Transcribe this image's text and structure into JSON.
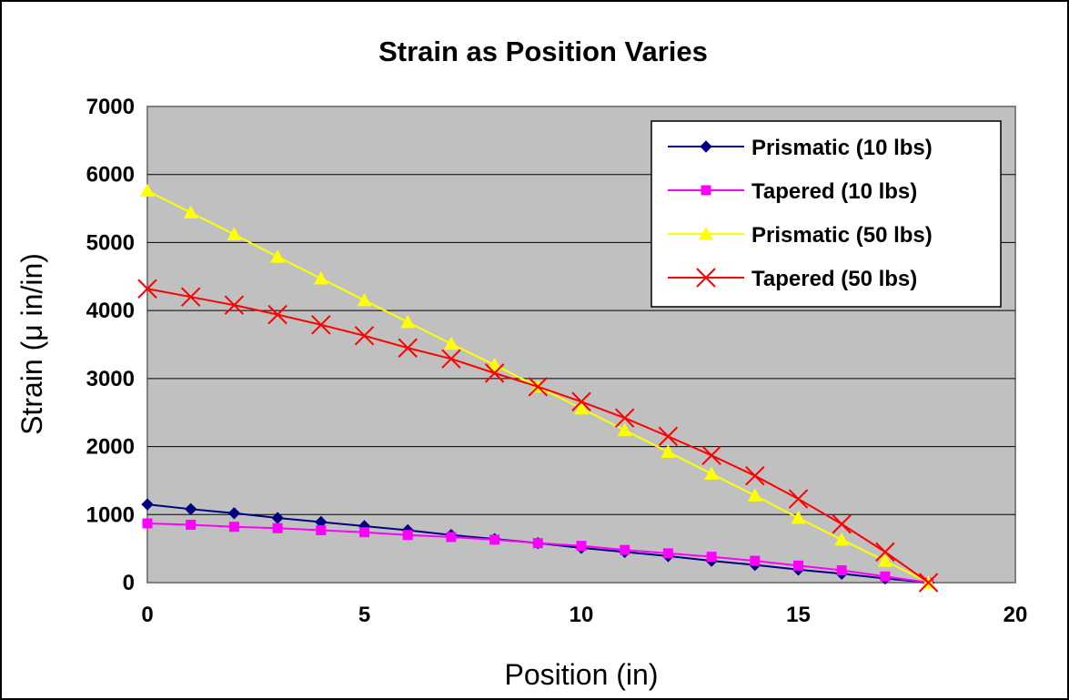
{
  "chart_data": {
    "type": "line",
    "title": "Strain as Position Varies",
    "xlabel": "Position (in)",
    "ylabel": "Strain (μ in/in)",
    "xlim": [
      0,
      20
    ],
    "ylim": [
      0,
      7000
    ],
    "xticks": [
      0,
      5,
      10,
      15,
      20
    ],
    "yticks": [
      0,
      1000,
      2000,
      3000,
      4000,
      5000,
      6000,
      7000
    ],
    "grid": "horizontal",
    "legend_position": "top-right",
    "plot_background": "#c0c0c0",
    "x": [
      0,
      1,
      2,
      3,
      4,
      5,
      6,
      7,
      8,
      9,
      10,
      11,
      12,
      13,
      14,
      15,
      16,
      17,
      18
    ],
    "series": [
      {
        "name": "Prismatic (10 lbs)",
        "color": "#000080",
        "marker": "diamond",
        "values": [
          1150,
          1080,
          1020,
          950,
          890,
          830,
          770,
          700,
          640,
          580,
          510,
          450,
          390,
          320,
          260,
          190,
          130,
          60,
          0
        ]
      },
      {
        "name": "Tapered (10 lbs)",
        "color": "#ff00ff",
        "marker": "square",
        "values": [
          870,
          850,
          820,
          800,
          770,
          740,
          700,
          670,
          630,
          580,
          540,
          480,
          430,
          380,
          320,
          250,
          180,
          90,
          0
        ]
      },
      {
        "name": "Prismatic (50 lbs)",
        "color": "#ffff00",
        "marker": "triangle",
        "values": [
          5760,
          5440,
          5120,
          4790,
          4470,
          4150,
          3830,
          3510,
          3200,
          2880,
          2560,
          2240,
          1920,
          1600,
          1280,
          950,
          630,
          320,
          0
        ]
      },
      {
        "name": "Tapered (50 lbs)",
        "color": "#ff0000",
        "marker": "x",
        "values": [
          4320,
          4200,
          4080,
          3940,
          3790,
          3630,
          3450,
          3290,
          3080,
          2880,
          2660,
          2420,
          2150,
          1870,
          1570,
          1230,
          860,
          450,
          0
        ]
      }
    ]
  }
}
